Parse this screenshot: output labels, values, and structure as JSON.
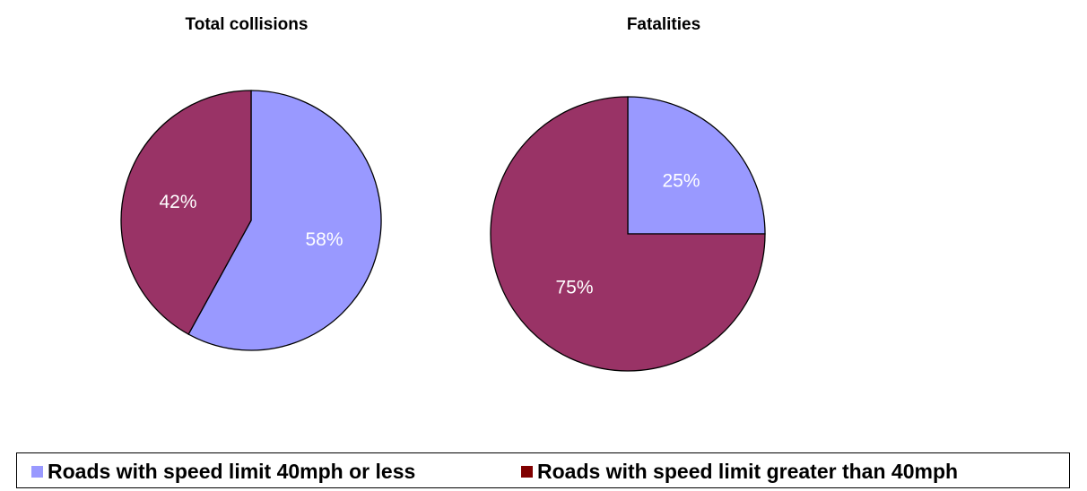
{
  "chart_data": [
    {
      "type": "pie",
      "title": "Total collisions",
      "slices": [
        {
          "label": "Roads with speed limit 40mph or less",
          "value": 58,
          "display": "58%",
          "color": "#9999ff"
        },
        {
          "label": "Roads with speed limit greater than 40mph",
          "value": 42,
          "display": "42%",
          "color": "#993366"
        }
      ]
    },
    {
      "type": "pie",
      "title": "Fatalities",
      "slices": [
        {
          "label": "Roads with speed limit 40mph or less",
          "value": 25,
          "display": "25%",
          "color": "#9999ff"
        },
        {
          "label": "Roads with speed limit greater than 40mph",
          "value": 75,
          "display": "75%",
          "color": "#993366"
        }
      ]
    }
  ],
  "legend": {
    "placement": "bottom",
    "items": [
      {
        "label": "Roads with speed limit 40mph or less",
        "color": "#9999ff"
      },
      {
        "label": "Roads with speed limit greater than 40mph",
        "color": "#800000"
      }
    ]
  }
}
